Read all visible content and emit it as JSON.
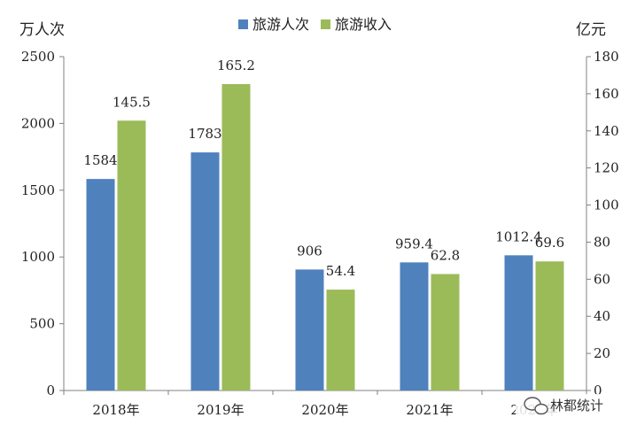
{
  "chart_data": {
    "type": "bar",
    "categories": [
      "2018年",
      "2019年",
      "2020年",
      "2021年",
      "2022年"
    ],
    "series": [
      {
        "name": "旅游人次",
        "axis": "left",
        "color": "#4f81bd",
        "values": [
          1584,
          1783,
          906,
          959.4,
          1012.4
        ],
        "labels": [
          "1584",
          "1783",
          "906",
          "959.4",
          "1012.4"
        ]
      },
      {
        "name": "旅游收入",
        "axis": "right",
        "color": "#9bbb59",
        "values": [
          145.5,
          165.2,
          54.4,
          62.8,
          69.6
        ],
        "labels": [
          "145.5",
          "165.2",
          "54.4",
          "62.8",
          "69.6"
        ]
      }
    ],
    "left_axis": {
      "unit": "万人次",
      "range": [
        0,
        2500
      ],
      "ticks": [
        "0",
        "500",
        "1000",
        "1500",
        "2000",
        "2500"
      ]
    },
    "right_axis": {
      "unit": "亿元",
      "range": [
        0,
        180
      ],
      "ticks": [
        "0",
        "20",
        "40",
        "60",
        "80",
        "100",
        "120",
        "140",
        "160",
        "180"
      ]
    },
    "legend_position": "top-center",
    "grid": false
  },
  "watermark": {
    "text": "林都统计",
    "icon": "wechat-icon"
  }
}
